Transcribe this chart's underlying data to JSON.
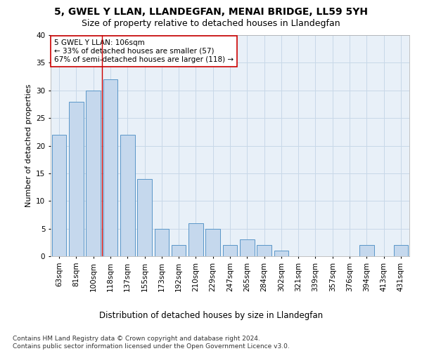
{
  "title1": "5, GWEL Y LLAN, LLANDEGFAN, MENAI BRIDGE, LL59 5YH",
  "title2": "Size of property relative to detached houses in Llandegfan",
  "xlabel": "Distribution of detached houses by size in Llandegfan",
  "ylabel": "Number of detached properties",
  "categories": [
    "63sqm",
    "81sqm",
    "100sqm",
    "118sqm",
    "137sqm",
    "155sqm",
    "173sqm",
    "192sqm",
    "210sqm",
    "229sqm",
    "247sqm",
    "265sqm",
    "284sqm",
    "302sqm",
    "321sqm",
    "339sqm",
    "357sqm",
    "376sqm",
    "394sqm",
    "413sqm",
    "431sqm"
  ],
  "values": [
    22,
    28,
    30,
    32,
    22,
    14,
    5,
    2,
    6,
    5,
    2,
    3,
    2,
    1,
    0,
    0,
    0,
    0,
    2,
    0,
    2
  ],
  "bar_color": "#c5d8ed",
  "bar_edge_color": "#5a96c8",
  "ylim": [
    0,
    40
  ],
  "yticks": [
    0,
    5,
    10,
    15,
    20,
    25,
    30,
    35,
    40
  ],
  "vline_x_index": 2,
  "vline_color": "#cc0000",
  "annotation_text": "5 GWEL Y LLAN: 106sqm\n← 33% of detached houses are smaller (57)\n67% of semi-detached houses are larger (118) →",
  "annotation_box_color": "#ffffff",
  "annotation_box_edge_color": "#cc0000",
  "footer": "Contains HM Land Registry data © Crown copyright and database right 2024.\nContains public sector information licensed under the Open Government Licence v3.0.",
  "bg_color": "#ffffff",
  "plot_bg_color": "#e8f0f8",
  "grid_color": "#c8d8e8",
  "title1_fontsize": 10,
  "title2_fontsize": 9,
  "xlabel_fontsize": 8.5,
  "ylabel_fontsize": 8,
  "tick_fontsize": 7.5,
  "annotation_fontsize": 7.5,
  "footer_fontsize": 6.5
}
